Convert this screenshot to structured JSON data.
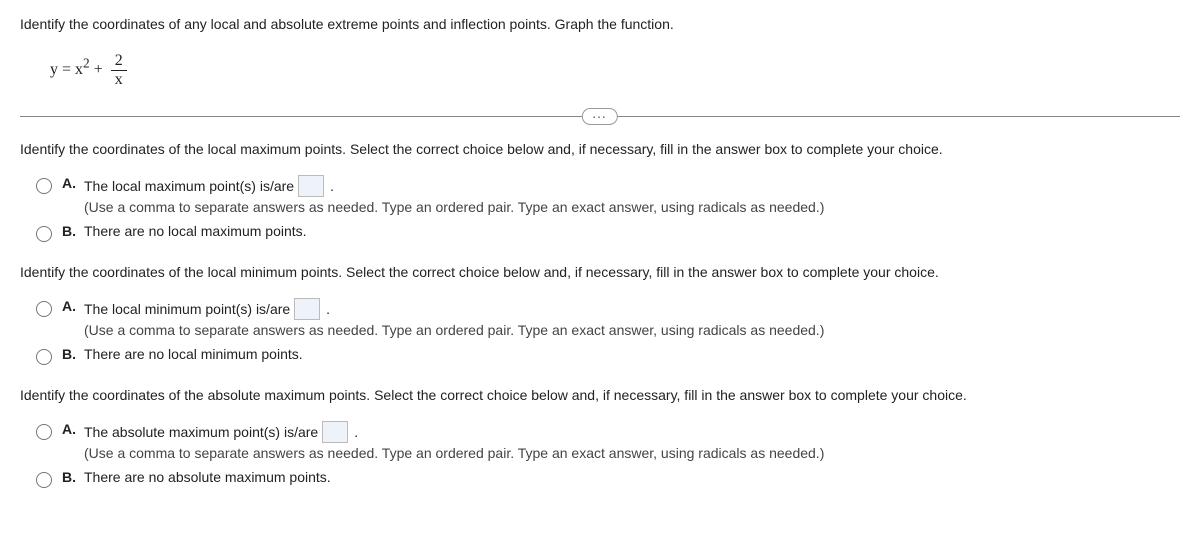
{
  "intro": "Identify the coordinates of any local and absolute extreme points and inflection points. Graph the function.",
  "formula": {
    "prefix": "y = x",
    "power": "2",
    "plus": " + ",
    "frac_num": "2",
    "frac_den": "x"
  },
  "ellipsis": "...",
  "questions": [
    {
      "prompt": "Identify the coordinates of the local maximum points. Select the correct choice below and, if necessary, fill in the answer box to complete your choice.",
      "optA_text": "The local maximum point(s) is/are",
      "optA_hint": "(Use a comma to separate answers as needed. Type an ordered pair. Type an exact answer, using radicals as needed.)",
      "optB_text": "There are no local maximum points."
    },
    {
      "prompt": "Identify the coordinates of the local minimum points. Select the correct choice below and, if necessary, fill in the answer box to complete your choice.",
      "optA_text": "The local minimum point(s) is/are",
      "optA_hint": "(Use a comma to separate answers as needed. Type an ordered pair. Type an exact answer, using radicals as needed.)",
      "optB_text": "There are no local minimum points."
    },
    {
      "prompt": "Identify the coordinates of the absolute maximum points. Select the correct choice below and, if necessary, fill in the answer box to complete your choice.",
      "optA_text": "The absolute maximum point(s) is/are",
      "optA_hint": "(Use a comma to separate answers as needed. Type an ordered pair. Type an exact answer, using radicals as needed.)",
      "optB_text": "There are no absolute maximum points."
    }
  ],
  "labelA": "A.",
  "labelB": "B.",
  "period": "."
}
